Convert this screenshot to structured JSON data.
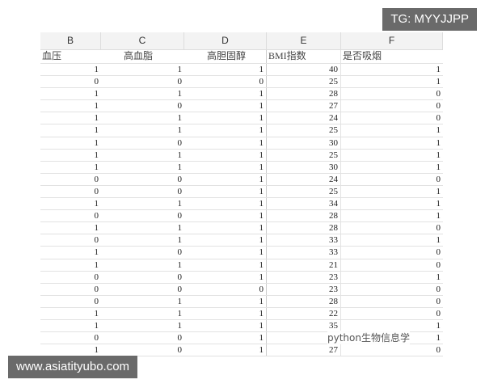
{
  "columns": [
    "B",
    "C",
    "D",
    "E",
    "F"
  ],
  "fields": [
    "血压",
    "高血脂",
    "高胆固醇",
    "BMI指数",
    "是否吸烟"
  ],
  "rows": [
    [
      "1",
      "1",
      "1",
      "40",
      "1"
    ],
    [
      "0",
      "0",
      "0",
      "25",
      "1"
    ],
    [
      "1",
      "1",
      "1",
      "28",
      "0"
    ],
    [
      "1",
      "0",
      "1",
      "27",
      "0"
    ],
    [
      "1",
      "1",
      "1",
      "24",
      "0"
    ],
    [
      "1",
      "1",
      "1",
      "25",
      "1"
    ],
    [
      "1",
      "0",
      "1",
      "30",
      "1"
    ],
    [
      "1",
      "1",
      "1",
      "25",
      "1"
    ],
    [
      "1",
      "1",
      "1",
      "30",
      "1"
    ],
    [
      "0",
      "0",
      "1",
      "24",
      "0"
    ],
    [
      "0",
      "0",
      "1",
      "25",
      "1"
    ],
    [
      "1",
      "1",
      "1",
      "34",
      "1"
    ],
    [
      "0",
      "0",
      "1",
      "28",
      "1"
    ],
    [
      "1",
      "1",
      "1",
      "28",
      "0"
    ],
    [
      "0",
      "1",
      "1",
      "33",
      "1"
    ],
    [
      "1",
      "0",
      "1",
      "33",
      "0"
    ],
    [
      "1",
      "1",
      "1",
      "21",
      "0"
    ],
    [
      "0",
      "0",
      "1",
      "23",
      "1"
    ],
    [
      "0",
      "0",
      "0",
      "23",
      "0"
    ],
    [
      "0",
      "1",
      "1",
      "28",
      "0"
    ],
    [
      "1",
      "1",
      "1",
      "22",
      "0"
    ],
    [
      "1",
      "1",
      "1",
      "35",
      "1"
    ],
    [
      "0",
      "0",
      "1",
      "",
      "1"
    ],
    [
      "1",
      "0",
      "1",
      "27",
      "0"
    ]
  ],
  "watermarks": {
    "tg": "TG: MYYJJPP",
    "site": "www.asiatityubo.com",
    "wechat": "python生物信息学"
  }
}
